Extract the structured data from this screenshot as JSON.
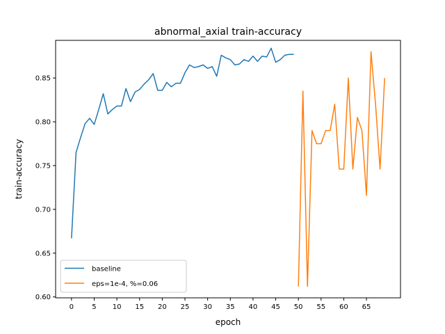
{
  "chart_data": {
    "type": "line",
    "title": "abnormal_axial train-accuracy",
    "xlabel": "epoch",
    "ylabel": "train-accuracy",
    "xlim": [
      -3.5,
      72.5
    ],
    "ylim": [
      0.599,
      0.893
    ],
    "xticks": [
      0,
      5,
      10,
      15,
      20,
      25,
      30,
      35,
      40,
      45,
      50,
      55,
      60,
      65
    ],
    "yticks": [
      0.6,
      0.65,
      0.7,
      0.75,
      0.8,
      0.85
    ],
    "ytick_labels": [
      "0.60",
      "0.65",
      "0.70",
      "0.75",
      "0.80",
      "0.85"
    ],
    "grid": false,
    "legend_position": "lower-left",
    "series": [
      {
        "name": "baseline",
        "color": "#1f77b4",
        "x": [
          0,
          1,
          2,
          3,
          4,
          5,
          6,
          7,
          8,
          9,
          10,
          11,
          12,
          13,
          14,
          15,
          16,
          17,
          18,
          19,
          20,
          21,
          22,
          23,
          24,
          25,
          26,
          27,
          28,
          29,
          30,
          31,
          32,
          33,
          34,
          35,
          36,
          37,
          38,
          39,
          40,
          41,
          42,
          43,
          44,
          45,
          46,
          47,
          48,
          49
        ],
        "y": [
          0.667,
          0.765,
          0.782,
          0.798,
          0.804,
          0.797,
          0.814,
          0.832,
          0.809,
          0.814,
          0.818,
          0.818,
          0.838,
          0.823,
          0.834,
          0.837,
          0.843,
          0.848,
          0.855,
          0.836,
          0.836,
          0.845,
          0.84,
          0.844,
          0.844,
          0.856,
          0.865,
          0.862,
          0.863,
          0.865,
          0.861,
          0.863,
          0.852,
          0.876,
          0.873,
          0.871,
          0.865,
          0.866,
          0.871,
          0.869,
          0.875,
          0.869,
          0.875,
          0.874,
          0.884,
          0.868,
          0.871,
          0.876,
          0.877,
          0.877
        ]
      },
      {
        "name": "eps=1e-4, %=0.06",
        "color": "#ff7f0e",
        "x": [
          50,
          51,
          52,
          53,
          54,
          55,
          56,
          57,
          58,
          59,
          60,
          61,
          62,
          63,
          64,
          65,
          66,
          67,
          68,
          69
        ],
        "y": [
          0.612,
          0.835,
          0.612,
          0.79,
          0.775,
          0.775,
          0.79,
          0.79,
          0.82,
          0.746,
          0.746,
          0.85,
          0.746,
          0.805,
          0.79,
          0.716,
          0.88,
          0.82,
          0.746,
          0.85
        ]
      }
    ]
  }
}
